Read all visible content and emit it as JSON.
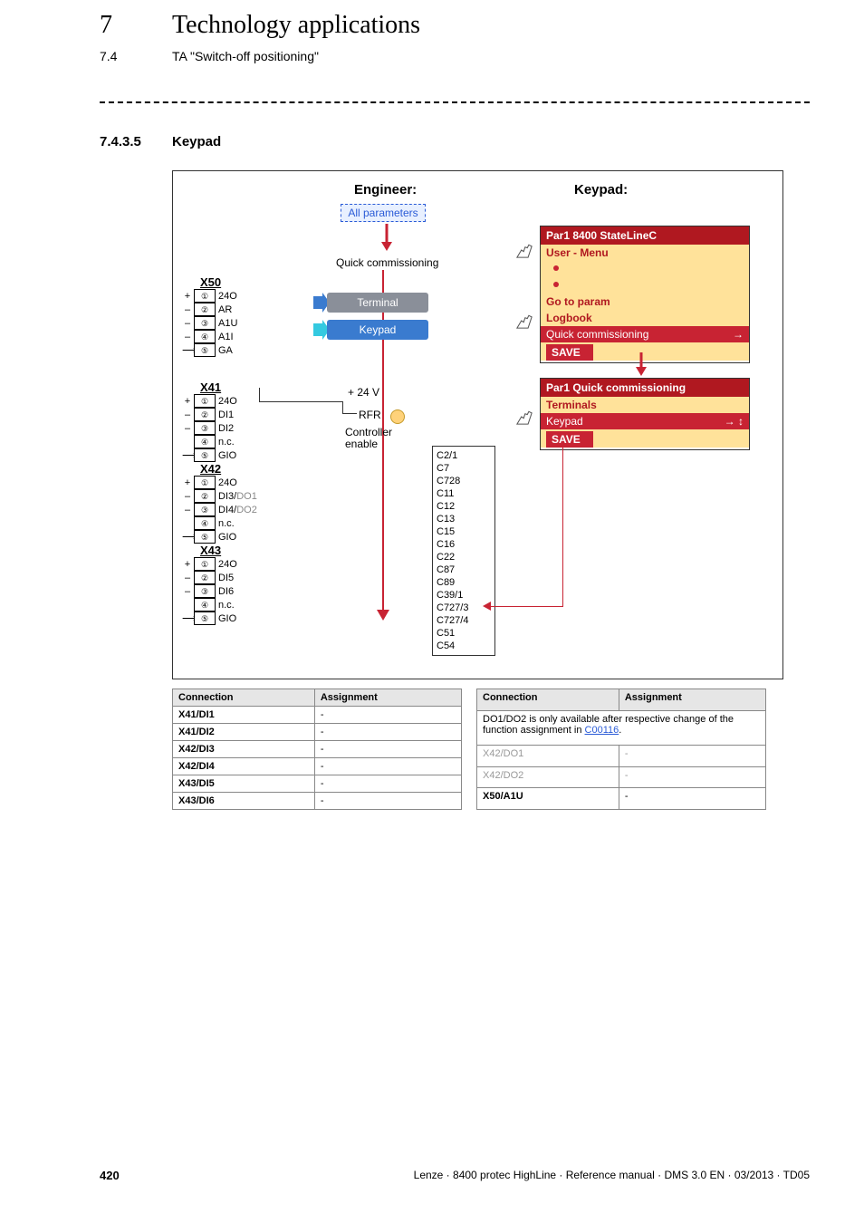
{
  "header": {
    "chapter_num": "7",
    "chapter_title": "Technology applications",
    "sub_num": "7.4",
    "sub_title": "TA \"Switch-off positioning\"",
    "section_num": "7.4.3.5",
    "section_title": "Keypad"
  },
  "diagram": {
    "engineer_label": "Engineer:",
    "keypad_label": "Keypad:",
    "all_params": "All parameters",
    "quick_comm": "Quick commissioning",
    "btn_terminal": "Terminal",
    "btn_keypad": "Keypad",
    "plus24v": "+ 24 V",
    "rfr": "RFR",
    "controller_enable": "Controller\nenable",
    "terminal_blocks": {
      "x50": {
        "hdr": "X50",
        "rows": [
          {
            "pre": "+",
            "num": "①",
            "lbl": "24O"
          },
          {
            "pre": "–",
            "num": "②",
            "lbl": "AR"
          },
          {
            "pre": "–",
            "num": "③",
            "lbl": "A1U"
          },
          {
            "pre": "–",
            "num": "④",
            "lbl": "A1I"
          },
          {
            "pre": "⟶",
            "num": "⑤",
            "lbl": "GA"
          }
        ]
      },
      "x41": {
        "hdr": "X41",
        "rows": [
          {
            "pre": "+",
            "num": "①",
            "lbl": "24O"
          },
          {
            "pre": "–",
            "num": "②",
            "lbl": "DI1"
          },
          {
            "pre": "–",
            "num": "③",
            "lbl": "DI2"
          },
          {
            "pre": "",
            "num": "④",
            "lbl": "n.c."
          },
          {
            "pre": "⟶",
            "num": "⑤",
            "lbl": "GIO"
          }
        ]
      },
      "x42": {
        "hdr": "X42",
        "rows": [
          {
            "pre": "+",
            "num": "①",
            "lbl": "24O"
          },
          {
            "pre": "–",
            "num": "②",
            "lbl": "DI3/DO1",
            "do": "DO1"
          },
          {
            "pre": "–",
            "num": "③",
            "lbl": "DI4/DO2",
            "do": "DO2"
          },
          {
            "pre": "",
            "num": "④",
            "lbl": "n.c."
          },
          {
            "pre": "⟶",
            "num": "⑤",
            "lbl": "GIO"
          }
        ]
      },
      "x43": {
        "hdr": "X43",
        "rows": [
          {
            "pre": "+",
            "num": "①",
            "lbl": "24O"
          },
          {
            "pre": "–",
            "num": "②",
            "lbl": "DI5"
          },
          {
            "pre": "–",
            "num": "③",
            "lbl": "DI6"
          },
          {
            "pre": "",
            "num": "④",
            "lbl": "n.c."
          },
          {
            "pre": "⟶",
            "num": "⑤",
            "lbl": "GIO"
          }
        ]
      }
    },
    "params": [
      "C2/1",
      "C7",
      "C728",
      "C11",
      "C12",
      "C13",
      "C15",
      "C16",
      "C22",
      "C87",
      "C89",
      "C39/1",
      "C727/3",
      "C727/4",
      "C51",
      "C54"
    ],
    "menu1": {
      "title": "Par1 8400 StateLineC",
      "items": [
        "User - Menu",
        "•",
        "•",
        "Go to param",
        "Logbook",
        "Quick commissioning"
      ],
      "hl_index": 5,
      "save": "SAVE"
    },
    "menu2": {
      "title": "Par1 Quick commissioning",
      "items": [
        "Terminals",
        "Keypad"
      ],
      "hl_index": 1,
      "save": "SAVE"
    },
    "colors": {
      "red": "#c82333",
      "darkred": "#b01820",
      "menu_bg": "#ffe29a",
      "btn_gray": "#8a8f99",
      "btn_blue": "#3a7bcf"
    }
  },
  "tables": {
    "left": {
      "headers": [
        "Connection",
        "Assignment"
      ],
      "rows": [
        [
          "X41/DI1",
          "-"
        ],
        [
          "X41/DI2",
          "-"
        ],
        [
          "X42/DI3",
          "-"
        ],
        [
          "X42/DI4",
          "-"
        ],
        [
          "X43/DI5",
          "-"
        ],
        [
          "X43/DI6",
          "-"
        ]
      ]
    },
    "right": {
      "headers": [
        "Connection",
        "Assignment"
      ],
      "note_pre": "DO1/DO2 is only available after respective change of the function assignment in ",
      "note_link": "C00116",
      "note_post": ".",
      "rows": [
        [
          "X42/DO1",
          "-"
        ],
        [
          "X42/DO2",
          "-"
        ],
        [
          "X50/A1U",
          "-"
        ]
      ],
      "gray_rows": [
        0,
        1
      ]
    }
  },
  "footer": {
    "page": "420",
    "text": "Lenze · 8400 protec HighLine · Reference manual · DMS 3.0 EN · 03/2013 · TD05"
  }
}
